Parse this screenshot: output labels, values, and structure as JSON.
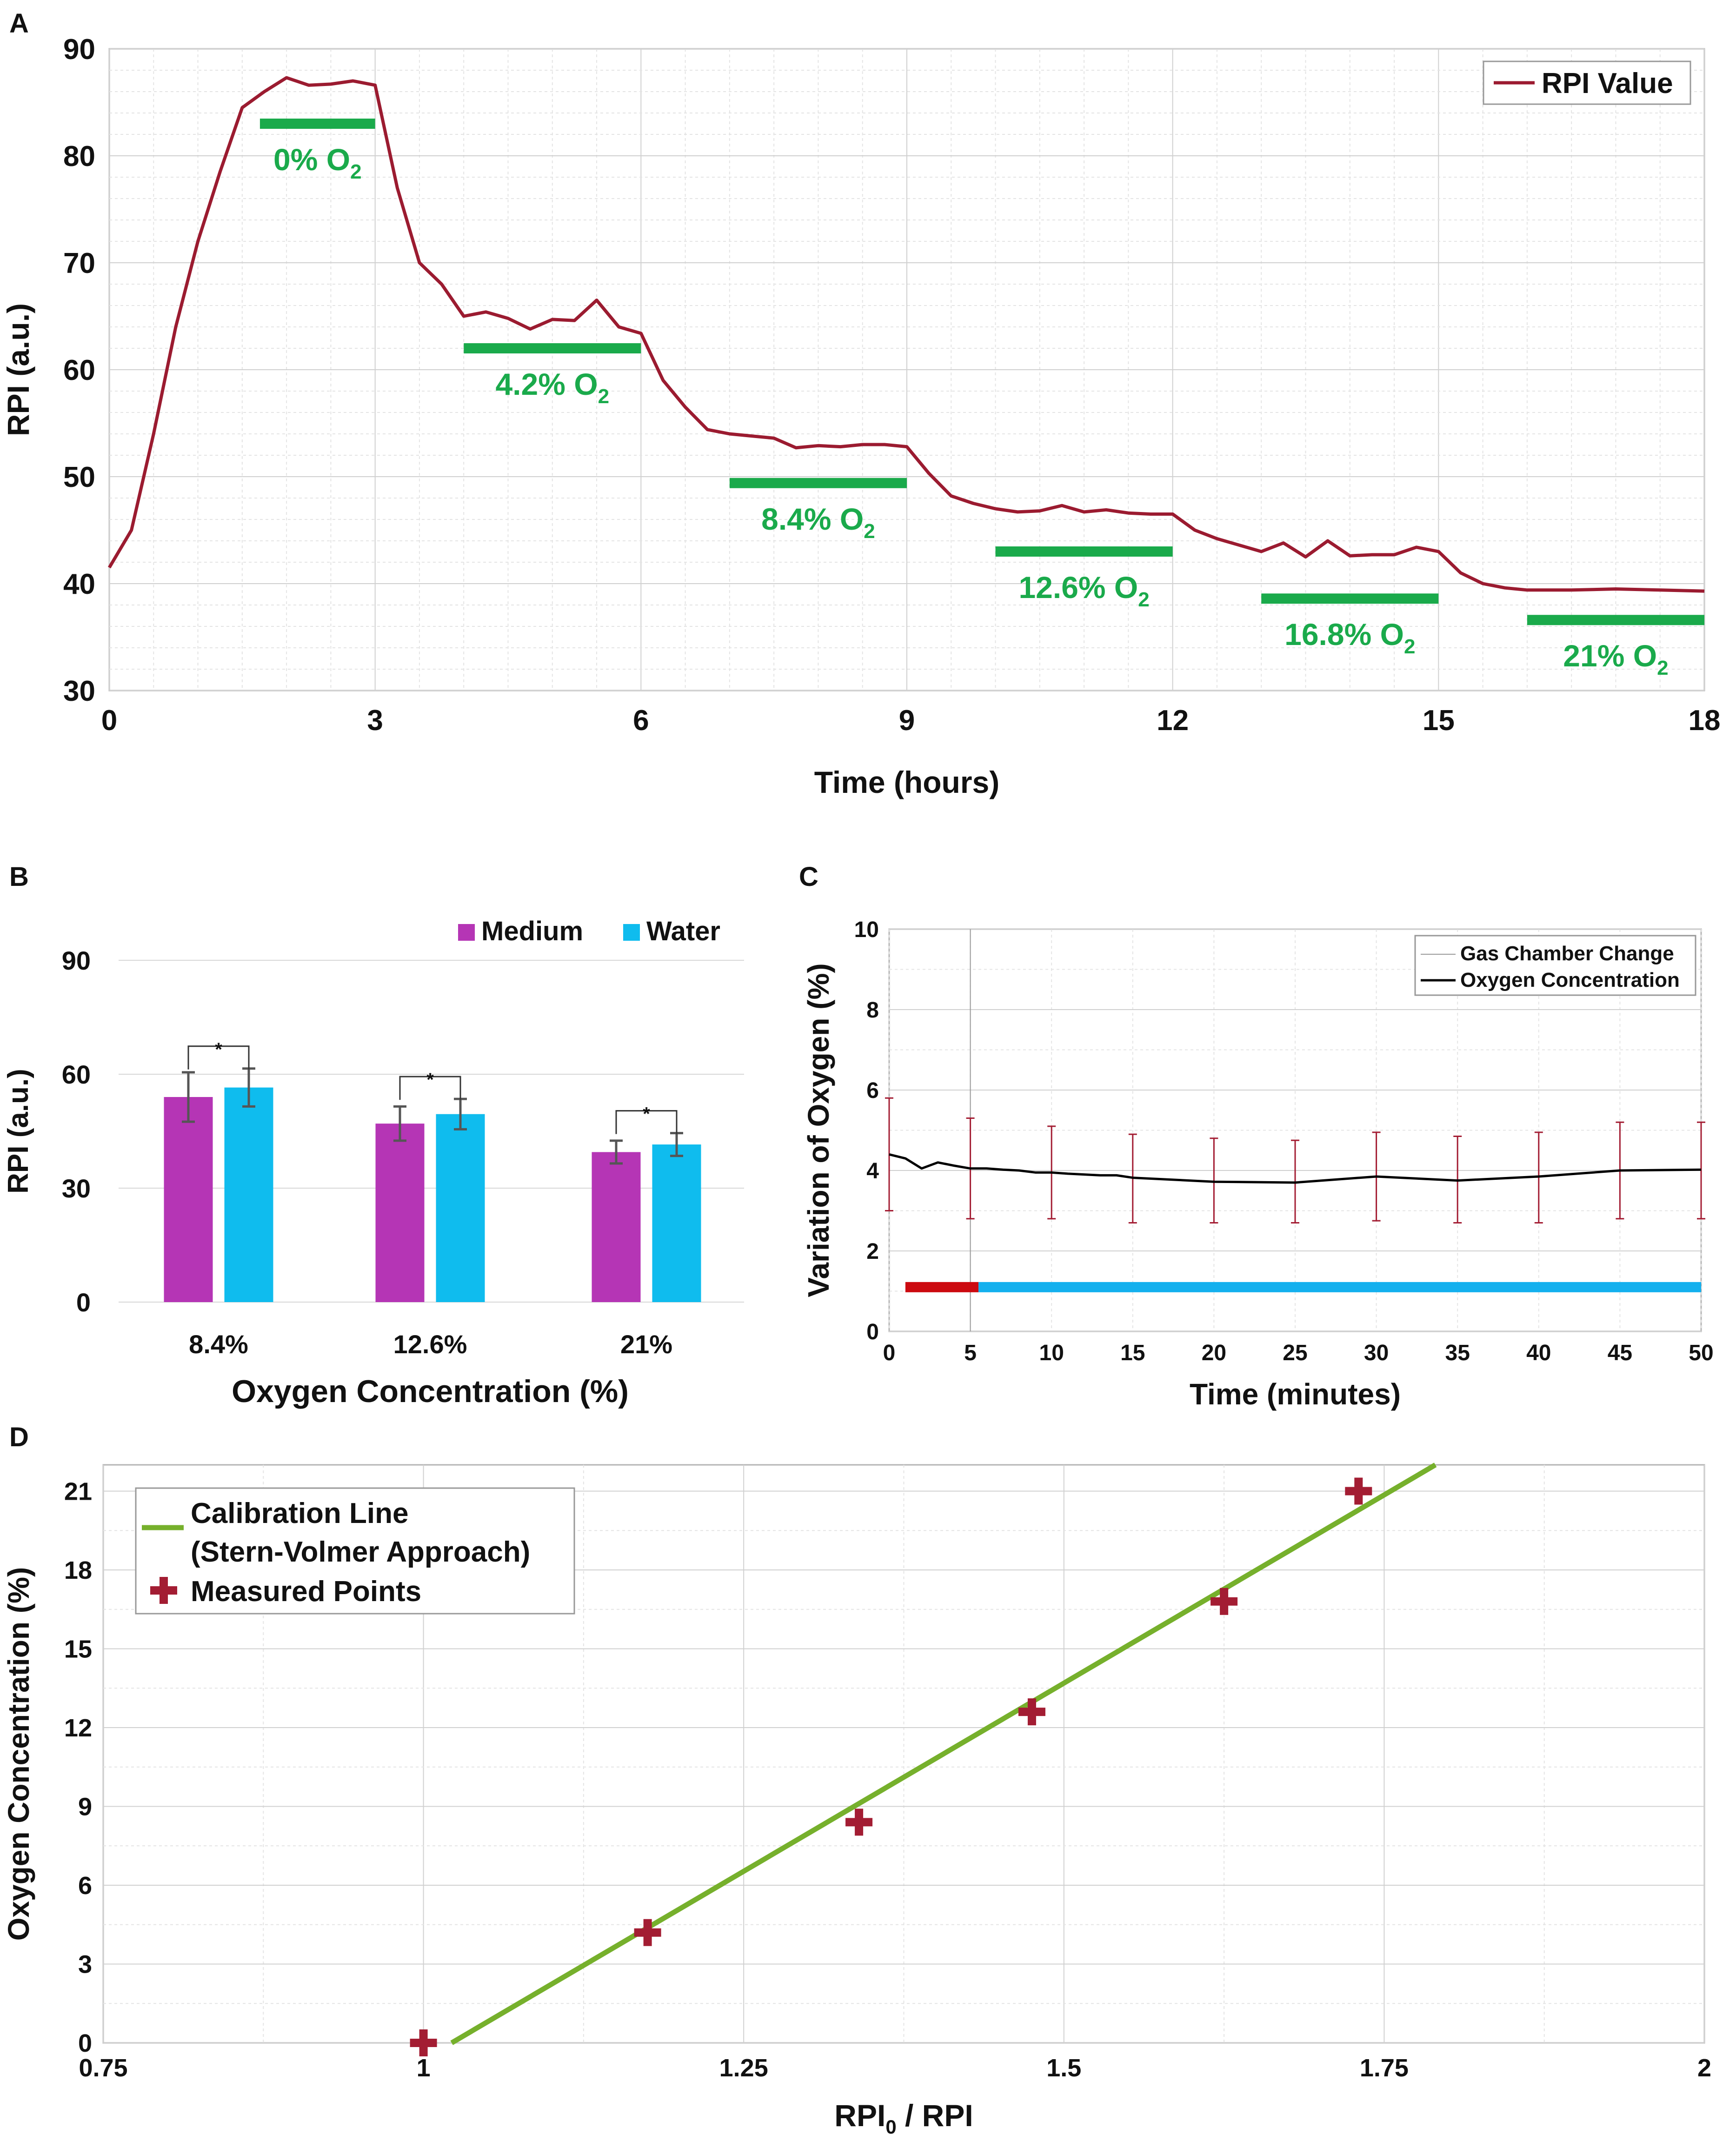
{
  "chart_data": [
    {
      "panel": "A",
      "type": "line",
      "xlabel": "Time (hours)",
      "ylabel": "RPI (a.u.)",
      "xlim": [
        0,
        18
      ],
      "ylim": [
        30,
        90
      ],
      "xticks": [
        "0",
        "3",
        "6",
        "9",
        "12",
        "15",
        "18"
      ],
      "yticks": [
        "30",
        "40",
        "50",
        "60",
        "70",
        "80",
        "90"
      ],
      "legend": "RPI Value",
      "line_color": "#9b1b30",
      "x": [
        0,
        0.25,
        0.5,
        0.75,
        1,
        1.25,
        1.5,
        1.75,
        2,
        2.25,
        2.5,
        2.75,
        3,
        3.25,
        3.5,
        3.75,
        4,
        4.25,
        4.5,
        4.75,
        5,
        5.25,
        5.5,
        5.75,
        6,
        6.25,
        6.5,
        6.75,
        7,
        7.25,
        7.5,
        7.75,
        8,
        8.25,
        8.5,
        8.75,
        9,
        9.25,
        9.5,
        9.75,
        10,
        10.25,
        10.5,
        10.75,
        11,
        11.25,
        11.5,
        11.75,
        12,
        12.25,
        12.5,
        12.75,
        13,
        13.25,
        13.5,
        13.75,
        14,
        14.25,
        14.5,
        14.75,
        15,
        15.25,
        15.5,
        15.75,
        16,
        16.5,
        17,
        17.5,
        18
      ],
      "y": [
        41.5,
        45,
        54,
        64,
        72,
        78.5,
        84.5,
        86,
        87.3,
        86.6,
        86.7,
        87,
        86.6,
        77,
        70,
        68,
        65,
        65.4,
        64.8,
        63.8,
        64.7,
        64.6,
        66.5,
        64,
        63.4,
        59,
        56.5,
        54.4,
        54,
        53.8,
        53.6,
        52.7,
        52.9,
        52.8,
        53,
        53,
        52.8,
        50.3,
        48.2,
        47.5,
        47,
        46.7,
        46.8,
        47.3,
        46.7,
        46.9,
        46.6,
        46.5,
        46.5,
        45,
        44.2,
        43.6,
        43,
        43.8,
        42.5,
        44,
        42.6,
        42.7,
        42.7,
        43.4,
        43,
        41,
        40,
        39.6,
        39.4,
        39.4,
        39.5,
        39.4,
        39.3
      ],
      "annotations": [
        {
          "label": "0% O",
          "sub": "2",
          "x_start": 1.7,
          "x_end": 3,
          "y": 83
        },
        {
          "label": "4.2% O",
          "sub": "2",
          "x_start": 4,
          "x_end": 6,
          "y": 62
        },
        {
          "label": "8.4% O",
          "sub": "2",
          "x_start": 7,
          "x_end": 9,
          "y": 49.4
        },
        {
          "label": "12.6% O",
          "sub": "2",
          "x_start": 10,
          "x_end": 12,
          "y": 43
        },
        {
          "label": "16.8% O",
          "sub": "2",
          "x_start": 13,
          "x_end": 15,
          "y": 38.6
        },
        {
          "label": "21% O",
          "sub": "2",
          "x_start": 16,
          "x_end": 18,
          "y": 36.6
        }
      ],
      "annotation_color": "#1aaa4b"
    },
    {
      "panel": "B",
      "type": "bar",
      "xlabel": "Oxygen Concentration (%)",
      "ylabel": "RPI (a.u.)",
      "ylim": [
        0,
        90
      ],
      "yticks": [
        "0",
        "30",
        "60",
        "90"
      ],
      "categories": [
        "8.4%",
        "12.6%",
        "21%"
      ],
      "series": [
        {
          "name": "Medium",
          "color": "#b535b5",
          "values": [
            54,
            47,
            39.5
          ],
          "errors": [
            6.5,
            4.5,
            3
          ]
        },
        {
          "name": "Water",
          "color": "#0fbcee",
          "values": [
            56.5,
            49.5,
            41.5
          ],
          "errors": [
            5,
            4,
            3
          ]
        }
      ],
      "significance": [
        "*",
        "*",
        "*"
      ]
    },
    {
      "panel": "C",
      "type": "line",
      "xlabel": "Time (minutes)",
      "ylabel": "Variation of Oxygen (%)",
      "xlim": [
        0,
        50
      ],
      "ylim": [
        0,
        10
      ],
      "xticks": [
        "0",
        "5",
        "10",
        "15",
        "20",
        "25",
        "30",
        "35",
        "40",
        "45",
        "50"
      ],
      "yticks": [
        "0",
        "2",
        "4",
        "6",
        "8",
        "10"
      ],
      "legend": [
        "Gas Chamber Change",
        "Oxygen Concentration"
      ],
      "gas_chamber_change_x": 5,
      "x": [
        0,
        1,
        2,
        3,
        4,
        5,
        6,
        7,
        8,
        9,
        10,
        11,
        12,
        13,
        14,
        15,
        20,
        25,
        30,
        35,
        40,
        45,
        50
      ],
      "y": [
        4.4,
        4.3,
        4.05,
        4.2,
        4.12,
        4.05,
        4.05,
        4.02,
        4.0,
        3.95,
        3.95,
        3.92,
        3.9,
        3.88,
        3.88,
        3.82,
        3.72,
        3.7,
        3.85,
        3.75,
        3.85,
        4.0,
        4.02
      ],
      "error_x": [
        0,
        5,
        10,
        15,
        20,
        25,
        30,
        35,
        40,
        45,
        50
      ],
      "error_y": [
        4.4,
        4.05,
        3.95,
        3.82,
        3.72,
        3.7,
        3.85,
        3.75,
        3.85,
        4.0,
        4.02
      ],
      "error_lo": [
        3.0,
        2.8,
        2.8,
        2.7,
        2.7,
        2.7,
        2.75,
        2.7,
        2.7,
        2.8,
        2.8
      ],
      "error_hi": [
        5.8,
        5.3,
        5.1,
        4.9,
        4.8,
        4.75,
        4.95,
        4.85,
        4.95,
        5.2,
        5.2
      ],
      "phase_bar": [
        {
          "from": 1,
          "to": 5.5,
          "color": "#cc0a10"
        },
        {
          "from": 5.5,
          "to": 50,
          "color": "#14b0ee"
        }
      ],
      "phase_bar_y": 1.1
    },
    {
      "panel": "D",
      "type": "scatter",
      "xlabel": "RPI",
      "xlabel_sub": "0",
      "xlabel_rest": " / RPI",
      "ylabel": "Oxygen Concentration (%)",
      "xlim": [
        0.75,
        2
      ],
      "ylim": [
        0,
        22
      ],
      "xticks": [
        "0.75",
        "1",
        "1.25",
        "1.5",
        "1.75",
        "2"
      ],
      "xtick_values": [
        0.75,
        1,
        1.25,
        1.5,
        1.75,
        2
      ],
      "yticks": [
        "0",
        "3",
        "6",
        "9",
        "12",
        "15",
        "18",
        "21"
      ],
      "legend": [
        "Calibration Line",
        "(Stern-Volmer Approach)",
        "Measured Points"
      ],
      "line": {
        "x": [
          1.022,
          1.79
        ],
        "y": [
          0,
          22
        ],
        "color": "#76b02c"
      },
      "points": {
        "x": [
          1.0,
          1.175,
          1.34,
          1.475,
          1.625,
          1.73
        ],
        "y": [
          0,
          4.2,
          8.4,
          12.6,
          16.8,
          21
        ],
        "color": "#a31d33"
      }
    }
  ],
  "panel_labels": [
    "A",
    "B",
    "C",
    "D"
  ]
}
